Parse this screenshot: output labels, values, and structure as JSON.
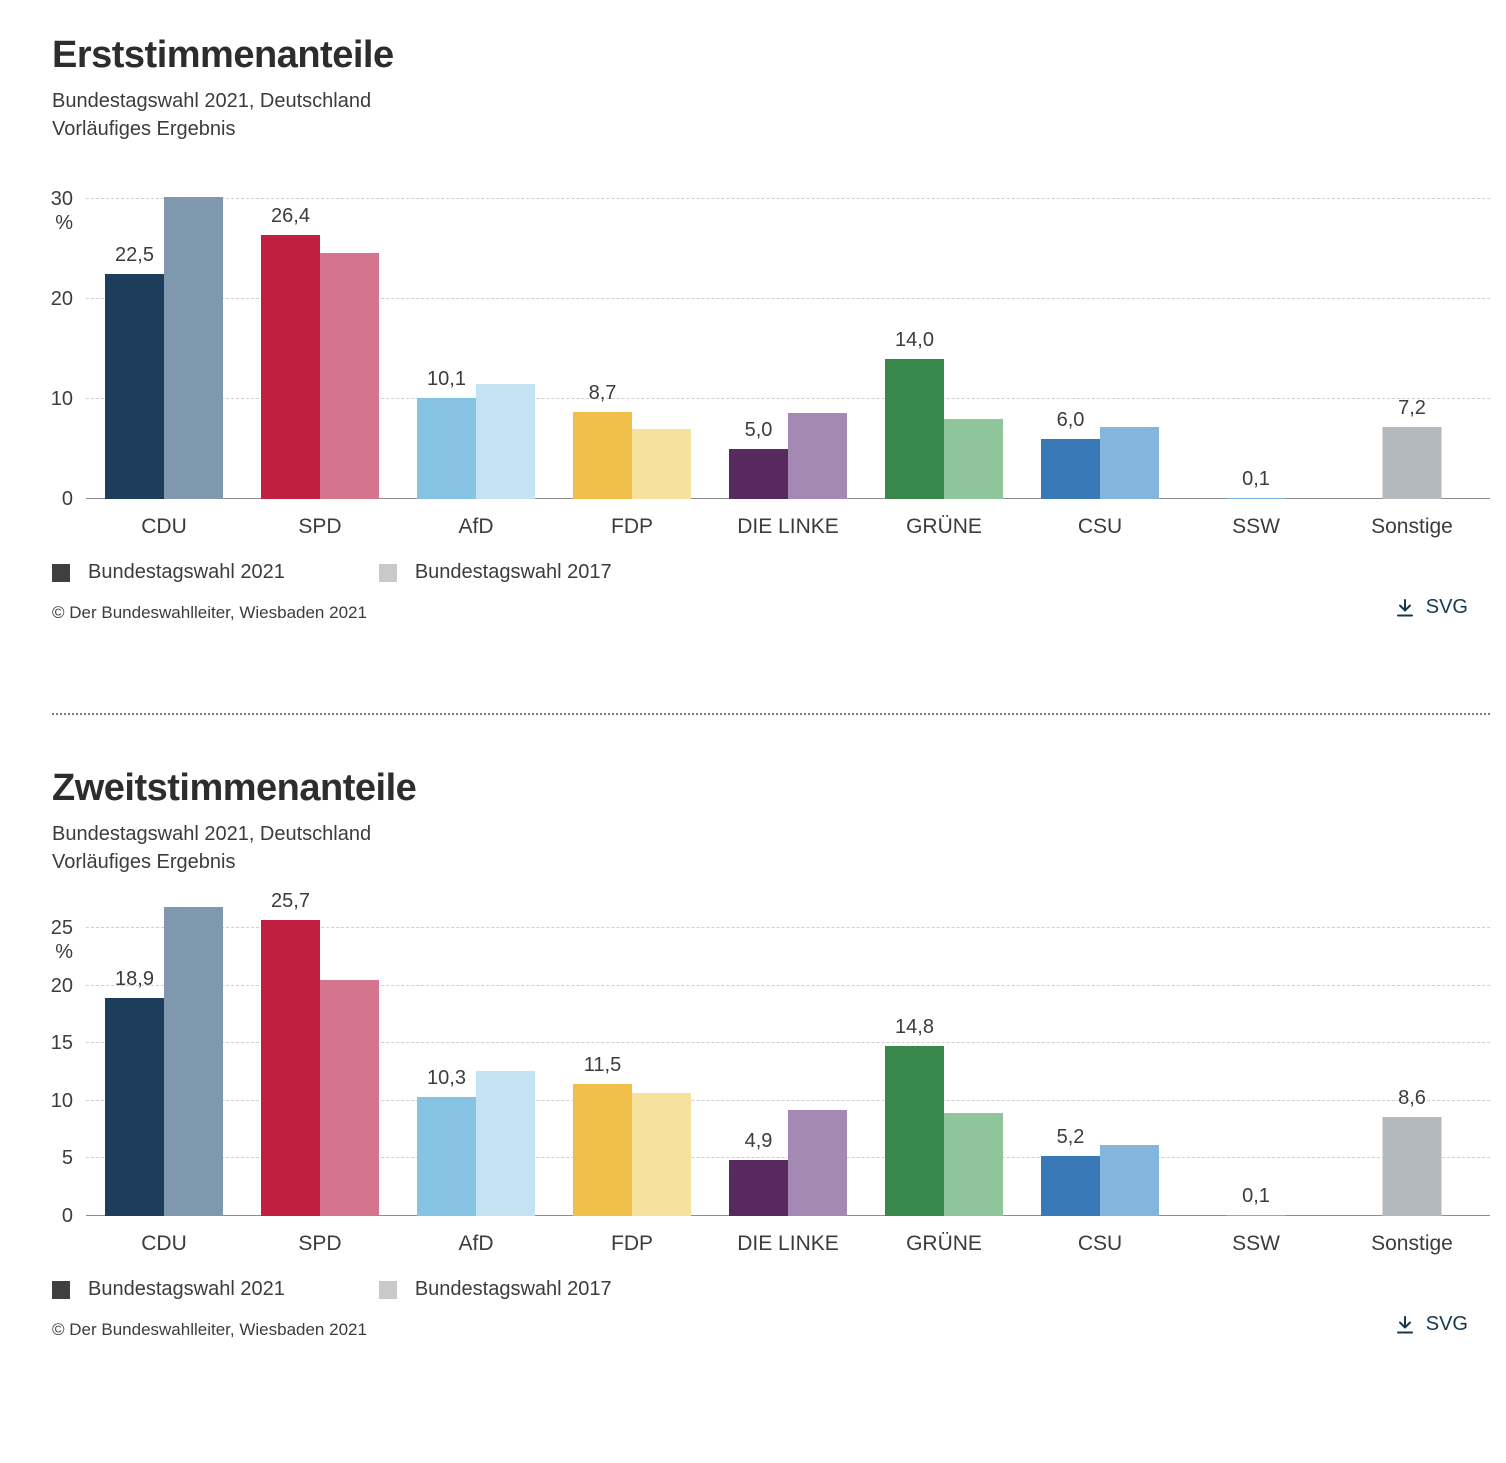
{
  "page": {
    "copyright": "© Der Bundeswahlleiter, Wiesbaden 2021",
    "download_label": "SVG"
  },
  "legend": {
    "items": [
      {
        "label": "Bundestagswahl 2021",
        "color": "#3f3f3f"
      },
      {
        "label": "Bundestagswahl 2017",
        "color": "#c9c9c9"
      }
    ]
  },
  "chart_data": [
    {
      "type": "bar",
      "title": "Erststimmenanteile",
      "subtitle": "Bundestagswahl 2021, Deutschland",
      "subtitle2": "Vorläufiges Ergebnis",
      "xlabel": "",
      "ylabel": "%",
      "ylim": [
        0,
        30
      ],
      "yticks": [
        0,
        10,
        20,
        30
      ],
      "grid": "dashed-horizontal",
      "legend_position": "bottom-left",
      "categories": [
        "CDU",
        "SPD",
        "AfD",
        "FDP",
        "DIE LINKE",
        "GRÜNE",
        "CSU",
        "SSW",
        "Sonstige"
      ],
      "series": [
        {
          "name": "Bundestagswahl 2021",
          "values": [
            22.5,
            26.4,
            10.1,
            8.7,
            5.0,
            14.0,
            6.0,
            0.1,
            7.2
          ],
          "value_labels": [
            "22,5",
            "26,4",
            "10,1",
            "8,7",
            "5,0",
            "14,0",
            "6,0",
            "0,1",
            "7,2"
          ]
        },
        {
          "name": "Bundestagswahl 2017",
          "values": [
            30.2,
            24.6,
            11.5,
            7.0,
            8.6,
            8.0,
            7.2,
            null,
            null
          ]
        }
      ],
      "colors_2021": [
        "#1e3d5c",
        "#c01f3f",
        "#87c3e2",
        "#efbf4a",
        "#58295f",
        "#37884a",
        "#3a79b8",
        "#74b3d8",
        "#b4b9be"
      ],
      "colors_2017": [
        "#7f98ad",
        "#d5758d",
        "#c3e2f2",
        "#f6e19e",
        "#a389b3",
        "#90c59c",
        "#83b5dd",
        null,
        null
      ]
    },
    {
      "type": "bar",
      "title": "Zweitstimmenanteile",
      "subtitle": "Bundestagswahl 2021, Deutschland",
      "subtitle2": "Vorläufiges Ergebnis",
      "xlabel": "",
      "ylabel": "%",
      "ylim": [
        0,
        25
      ],
      "yticks": [
        0,
        5,
        10,
        15,
        20,
        25
      ],
      "grid": "dashed-horizontal",
      "legend_position": "bottom-left",
      "categories": [
        "CDU",
        "SPD",
        "AfD",
        "FDP",
        "DIE LINKE",
        "GRÜNE",
        "CSU",
        "SSW",
        "Sonstige"
      ],
      "series": [
        {
          "name": "Bundestagswahl 2021",
          "values": [
            18.9,
            25.7,
            10.3,
            11.5,
            4.9,
            14.8,
            5.2,
            0.1,
            8.6
          ],
          "value_labels": [
            "18,9",
            "25,7",
            "10,3",
            "11,5",
            "4,9",
            "14,8",
            "5,2",
            "0,1",
            "8,6"
          ]
        },
        {
          "name": "Bundestagswahl 2017",
          "values": [
            26.8,
            20.5,
            12.6,
            10.7,
            9.2,
            8.9,
            6.2,
            null,
            null
          ]
        }
      ],
      "colors_2021": [
        "#1e3d5c",
        "#c01f3f",
        "#87c3e2",
        "#efbf4a",
        "#58295f",
        "#37884a",
        "#3a79b8",
        "#74b3d8",
        "#b4b9be"
      ],
      "colors_2017": [
        "#7f98ad",
        "#d5758d",
        "#c3e2f2",
        "#f6e19e",
        "#a389b3",
        "#90c59c",
        "#83b5dd",
        null,
        null
      ]
    }
  ]
}
